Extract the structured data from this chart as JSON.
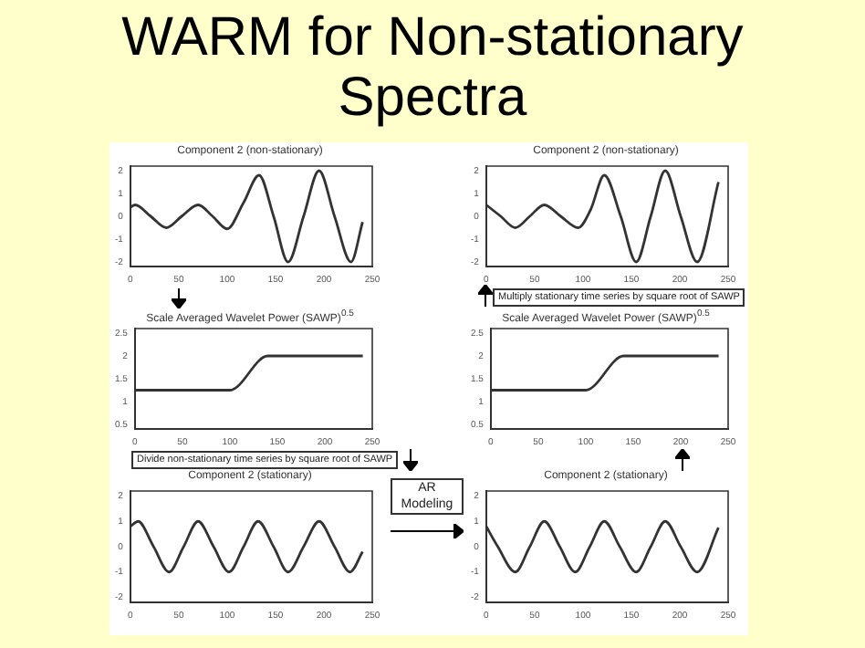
{
  "chart_data": [
    {
      "type": "line",
      "title": "Component 2 (non-stationary)",
      "annotations": [
        "WARM for Non-stationary Spectra"
      ],
      "x": [
        0,
        5,
        21,
        37,
        53,
        70,
        85,
        100,
        117,
        133,
        148,
        163,
        179,
        195,
        211,
        228,
        240
      ],
      "series": [
        {
          "color": "#333333",
          "values": [
            0.4,
            0.5,
            0,
            -0.5,
            0,
            0.5,
            0,
            -0.55,
            0.6,
            1.8,
            0,
            -2.0,
            0,
            2.0,
            0,
            -2.0,
            -0.25
          ]
        }
      ],
      "xlim": [
        0,
        250
      ],
      "xticks": [
        0,
        50,
        100,
        150,
        200,
        250
      ],
      "ylim": [
        -2.2,
        2.2
      ],
      "yticks": [
        -2,
        -1,
        0,
        1,
        2
      ]
    },
    {
      "type": "line",
      "title": "Component 2 (non-stationary)",
      "annotations": [
        "Multiply stationary time series by square root of SAWP"
      ],
      "x": [
        0,
        15,
        30,
        45,
        60,
        77,
        95,
        108,
        122,
        139,
        155,
        170,
        185,
        201,
        218,
        240
      ],
      "series": [
        {
          "color": "#333333",
          "values": [
            0.5,
            0,
            -0.5,
            0,
            0.5,
            0,
            -0.5,
            0.3,
            1.8,
            0,
            -2.0,
            0,
            2.0,
            0,
            -2.0,
            1.5
          ]
        }
      ],
      "xlim": [
        0,
        250
      ],
      "xticks": [
        0,
        50,
        100,
        150,
        200,
        250
      ],
      "ylim": [
        -2.2,
        2.2
      ],
      "yticks": [
        -2,
        -1,
        0,
        1,
        2
      ]
    },
    {
      "type": "line",
      "title": "Scale Averaged Wavelet Power (SAWP)$^{0.5}$",
      "annotations": [
        "Divide non-stationary time series by square root of SAWP"
      ],
      "x": [
        0,
        100,
        140,
        240
      ],
      "series": [
        {
          "color": "#333333",
          "values": [
            1.25,
            1.25,
            2.0,
            2.0
          ]
        }
      ],
      "xlim": [
        0,
        250
      ],
      "xticks": [
        0,
        50,
        100,
        150,
        200,
        250
      ],
      "ylim": [
        0.4,
        2.6
      ],
      "yticks": [
        0.5,
        1.0,
        1.5,
        2.0,
        2.5
      ]
    },
    {
      "type": "line",
      "title": "Scale Averaged Wavelet Power (SAWP)$^{0.5}$",
      "x": [
        0,
        100,
        140,
        240
      ],
      "series": [
        {
          "color": "#333333",
          "values": [
            1.25,
            1.25,
            2.0,
            2.0
          ]
        }
      ],
      "xlim": [
        0,
        250
      ],
      "xticks": [
        0,
        50,
        100,
        150,
        200,
        250
      ],
      "ylim": [
        0.4,
        2.6
      ],
      "yticks": [
        0.5,
        1.0,
        1.5,
        2.0,
        2.5
      ]
    },
    {
      "type": "line",
      "title": "Component 2 (stationary)",
      "annotations": [
        "AR Modeling"
      ],
      "x": [
        0,
        8,
        24,
        40,
        55,
        70,
        86,
        102,
        117,
        132,
        148,
        163,
        179,
        195,
        211,
        227,
        240
      ],
      "series": [
        {
          "color": "#333333",
          "values": [
            0.8,
            1,
            0,
            -1,
            0,
            1,
            0,
            -1,
            0,
            1,
            0,
            -1,
            0,
            1,
            0,
            -1,
            -0.2
          ]
        }
      ],
      "xlim": [
        0,
        250
      ],
      "xticks": [
        0,
        50,
        100,
        150,
        200,
        250
      ],
      "ylim": [
        -2.2,
        2.2
      ],
      "yticks": [
        -2,
        -1,
        0,
        1,
        2
      ]
    },
    {
      "type": "line",
      "title": "Component 2 (stationary)",
      "x": [
        0,
        12,
        30,
        45,
        60,
        76,
        92,
        107,
        122,
        138,
        155,
        170,
        185,
        201,
        218,
        240
      ],
      "series": [
        {
          "color": "#333333",
          "values": [
            0.8,
            0,
            -1,
            0,
            1,
            0,
            -1,
            0,
            1,
            0,
            -1,
            0,
            1,
            0,
            -1,
            0.75
          ]
        }
      ],
      "xlim": [
        0,
        250
      ],
      "xticks": [
        0,
        50,
        100,
        150,
        200,
        250
      ],
      "ylim": [
        -2.2,
        2.2
      ],
      "yticks": [
        -2,
        -1,
        0,
        1,
        2
      ]
    }
  ]
}
